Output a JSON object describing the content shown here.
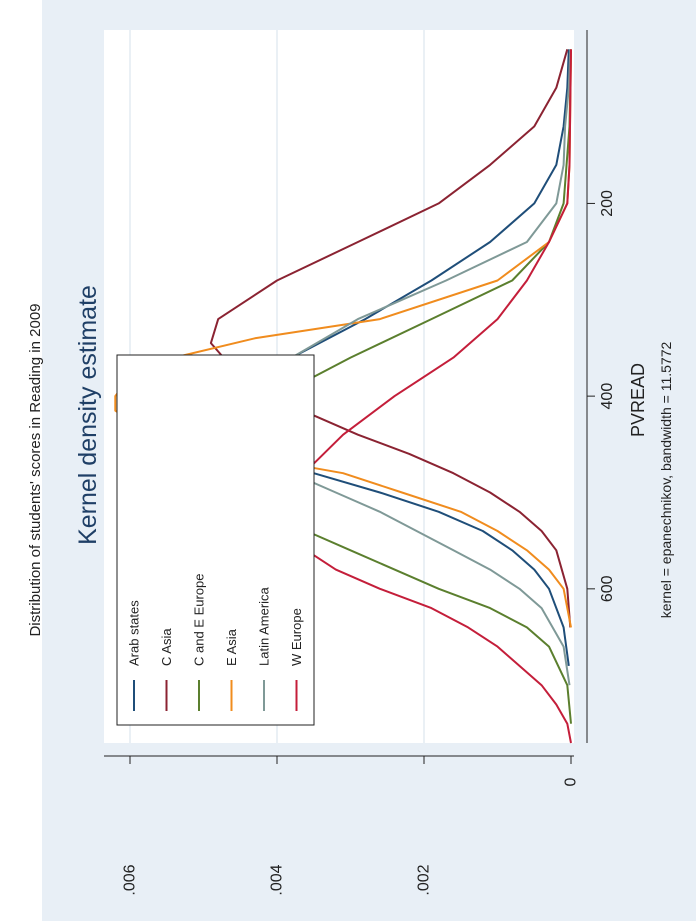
{
  "caption": "Distribution of students' scores in Reading in 2009",
  "chart_data": {
    "type": "line",
    "title": "Kernel density estimate",
    "xlabel": "PVREAD",
    "ylabel": "",
    "note": "kernel = epanechnikov, bandwidth = 11.5772",
    "xlim": [
      20,
      760
    ],
    "ylim": [
      0,
      0.0065
    ],
    "x_ticks": [
      200,
      400,
      600
    ],
    "x_tick_labels": [
      "200",
      "400",
      "600"
    ],
    "y_ticks": [
      0,
      0.002,
      0.004,
      0.006
    ],
    "y_tick_labels": [
      "0",
      ".002",
      ".004",
      ".006"
    ],
    "grid": true,
    "legend_placement": "top-left",
    "series": [
      {
        "name": "Arab states",
        "color": "#1f4e79",
        "points": [
          [
            40,
            3e-05
          ],
          [
            80,
            5e-05
          ],
          [
            120,
            0.0001
          ],
          [
            160,
            0.0002
          ],
          [
            200,
            0.0005
          ],
          [
            240,
            0.0011
          ],
          [
            280,
            0.0019
          ],
          [
            320,
            0.0028
          ],
          [
            360,
            0.0038
          ],
          [
            400,
            0.0046
          ],
          [
            420,
            0.0047
          ],
          [
            440,
            0.0046
          ],
          [
            460,
            0.0043
          ],
          [
            480,
            0.0035
          ],
          [
            500,
            0.0026
          ],
          [
            520,
            0.0018
          ],
          [
            540,
            0.0012
          ],
          [
            560,
            0.0008
          ],
          [
            580,
            0.0005
          ],
          [
            600,
            0.0003
          ],
          [
            640,
            0.0001
          ],
          [
            680,
            3e-05
          ]
        ]
      },
      {
        "name": "C Asia",
        "color": "#8b2332",
        "points": [
          [
            40,
            5e-05
          ],
          [
            80,
            0.0002
          ],
          [
            120,
            0.0005
          ],
          [
            160,
            0.0011
          ],
          [
            200,
            0.0018
          ],
          [
            240,
            0.0029
          ],
          [
            280,
            0.004
          ],
          [
            320,
            0.0048
          ],
          [
            345,
            0.0049
          ],
          [
            380,
            0.0045
          ],
          [
            410,
            0.0038
          ],
          [
            440,
            0.0029
          ],
          [
            460,
            0.0022
          ],
          [
            480,
            0.0016
          ],
          [
            500,
            0.0011
          ],
          [
            520,
            0.0007
          ],
          [
            540,
            0.0004
          ],
          [
            560,
            0.0002
          ],
          [
            600,
            5e-05
          ],
          [
            640,
            1e-05
          ]
        ]
      },
      {
        "name": "C and E Europe",
        "color": "#5b7f2e",
        "points": [
          [
            40,
            0.0
          ],
          [
            120,
            2e-05
          ],
          [
            200,
            0.0001
          ],
          [
            240,
            0.0003
          ],
          [
            280,
            0.0008
          ],
          [
            320,
            0.0019
          ],
          [
            360,
            0.003
          ],
          [
            400,
            0.004
          ],
          [
            430,
            0.0047
          ],
          [
            455,
            0.0051
          ],
          [
            480,
            0.005
          ],
          [
            500,
            0.0048
          ],
          [
            520,
            0.0043
          ],
          [
            540,
            0.0036
          ],
          [
            560,
            0.003
          ],
          [
            580,
            0.0024
          ],
          [
            600,
            0.0018
          ],
          [
            620,
            0.0011
          ],
          [
            640,
            0.0006
          ],
          [
            660,
            0.0003
          ],
          [
            700,
            5e-05
          ],
          [
            740,
            0.0
          ]
        ]
      },
      {
        "name": "E Asia",
        "color": "#f08c1e",
        "points": [
          [
            40,
            0.0
          ],
          [
            160,
            2e-05
          ],
          [
            200,
            5e-05
          ],
          [
            240,
            0.0003
          ],
          [
            280,
            0.001
          ],
          [
            320,
            0.0026
          ],
          [
            340,
            0.0043
          ],
          [
            360,
            0.0054
          ],
          [
            380,
            0.006
          ],
          [
            400,
            0.0062
          ],
          [
            415,
            0.0062
          ],
          [
            430,
            0.0059
          ],
          [
            450,
            0.005
          ],
          [
            465,
            0.0042
          ],
          [
            480,
            0.0031
          ],
          [
            500,
            0.0023
          ],
          [
            520,
            0.0015
          ],
          [
            540,
            0.001
          ],
          [
            560,
            0.0006
          ],
          [
            580,
            0.0003
          ],
          [
            600,
            0.0001
          ],
          [
            640,
            0.0
          ]
        ]
      },
      {
        "name": "Latin America",
        "color": "#7f9997",
        "points": [
          [
            40,
            1e-05
          ],
          [
            80,
            3e-05
          ],
          [
            120,
            8e-05
          ],
          [
            160,
            0.0001
          ],
          [
            200,
            0.0002
          ],
          [
            240,
            0.0006
          ],
          [
            280,
            0.0017
          ],
          [
            320,
            0.0029
          ],
          [
            360,
            0.0038
          ],
          [
            400,
            0.0042
          ],
          [
            430,
            0.0043
          ],
          [
            460,
            0.0042
          ],
          [
            480,
            0.0038
          ],
          [
            500,
            0.0032
          ],
          [
            520,
            0.0026
          ],
          [
            540,
            0.0021
          ],
          [
            560,
            0.0016
          ],
          [
            580,
            0.0011
          ],
          [
            600,
            0.0007
          ],
          [
            620,
            0.0004
          ],
          [
            660,
            0.0001
          ],
          [
            700,
            2e-05
          ]
        ]
      },
      {
        "name": "W Europe",
        "color": "#c41e3a",
        "points": [
          [
            40,
            0.0
          ],
          [
            160,
            2e-05
          ],
          [
            200,
            5e-05
          ],
          [
            240,
            0.0003
          ],
          [
            280,
            0.0006
          ],
          [
            320,
            0.001
          ],
          [
            360,
            0.0016
          ],
          [
            400,
            0.0024
          ],
          [
            440,
            0.0031
          ],
          [
            470,
            0.0035
          ],
          [
            500,
            0.0037
          ],
          [
            520,
            0.0039
          ],
          [
            540,
            0.0038
          ],
          [
            560,
            0.0036
          ],
          [
            580,
            0.0032
          ],
          [
            600,
            0.0026
          ],
          [
            620,
            0.0019
          ],
          [
            640,
            0.0014
          ],
          [
            660,
            0.001
          ],
          [
            680,
            0.0007
          ],
          [
            700,
            0.0004
          ],
          [
            720,
            0.0002
          ],
          [
            740,
            5e-05
          ],
          [
            760,
            0.0
          ]
        ]
      }
    ]
  }
}
